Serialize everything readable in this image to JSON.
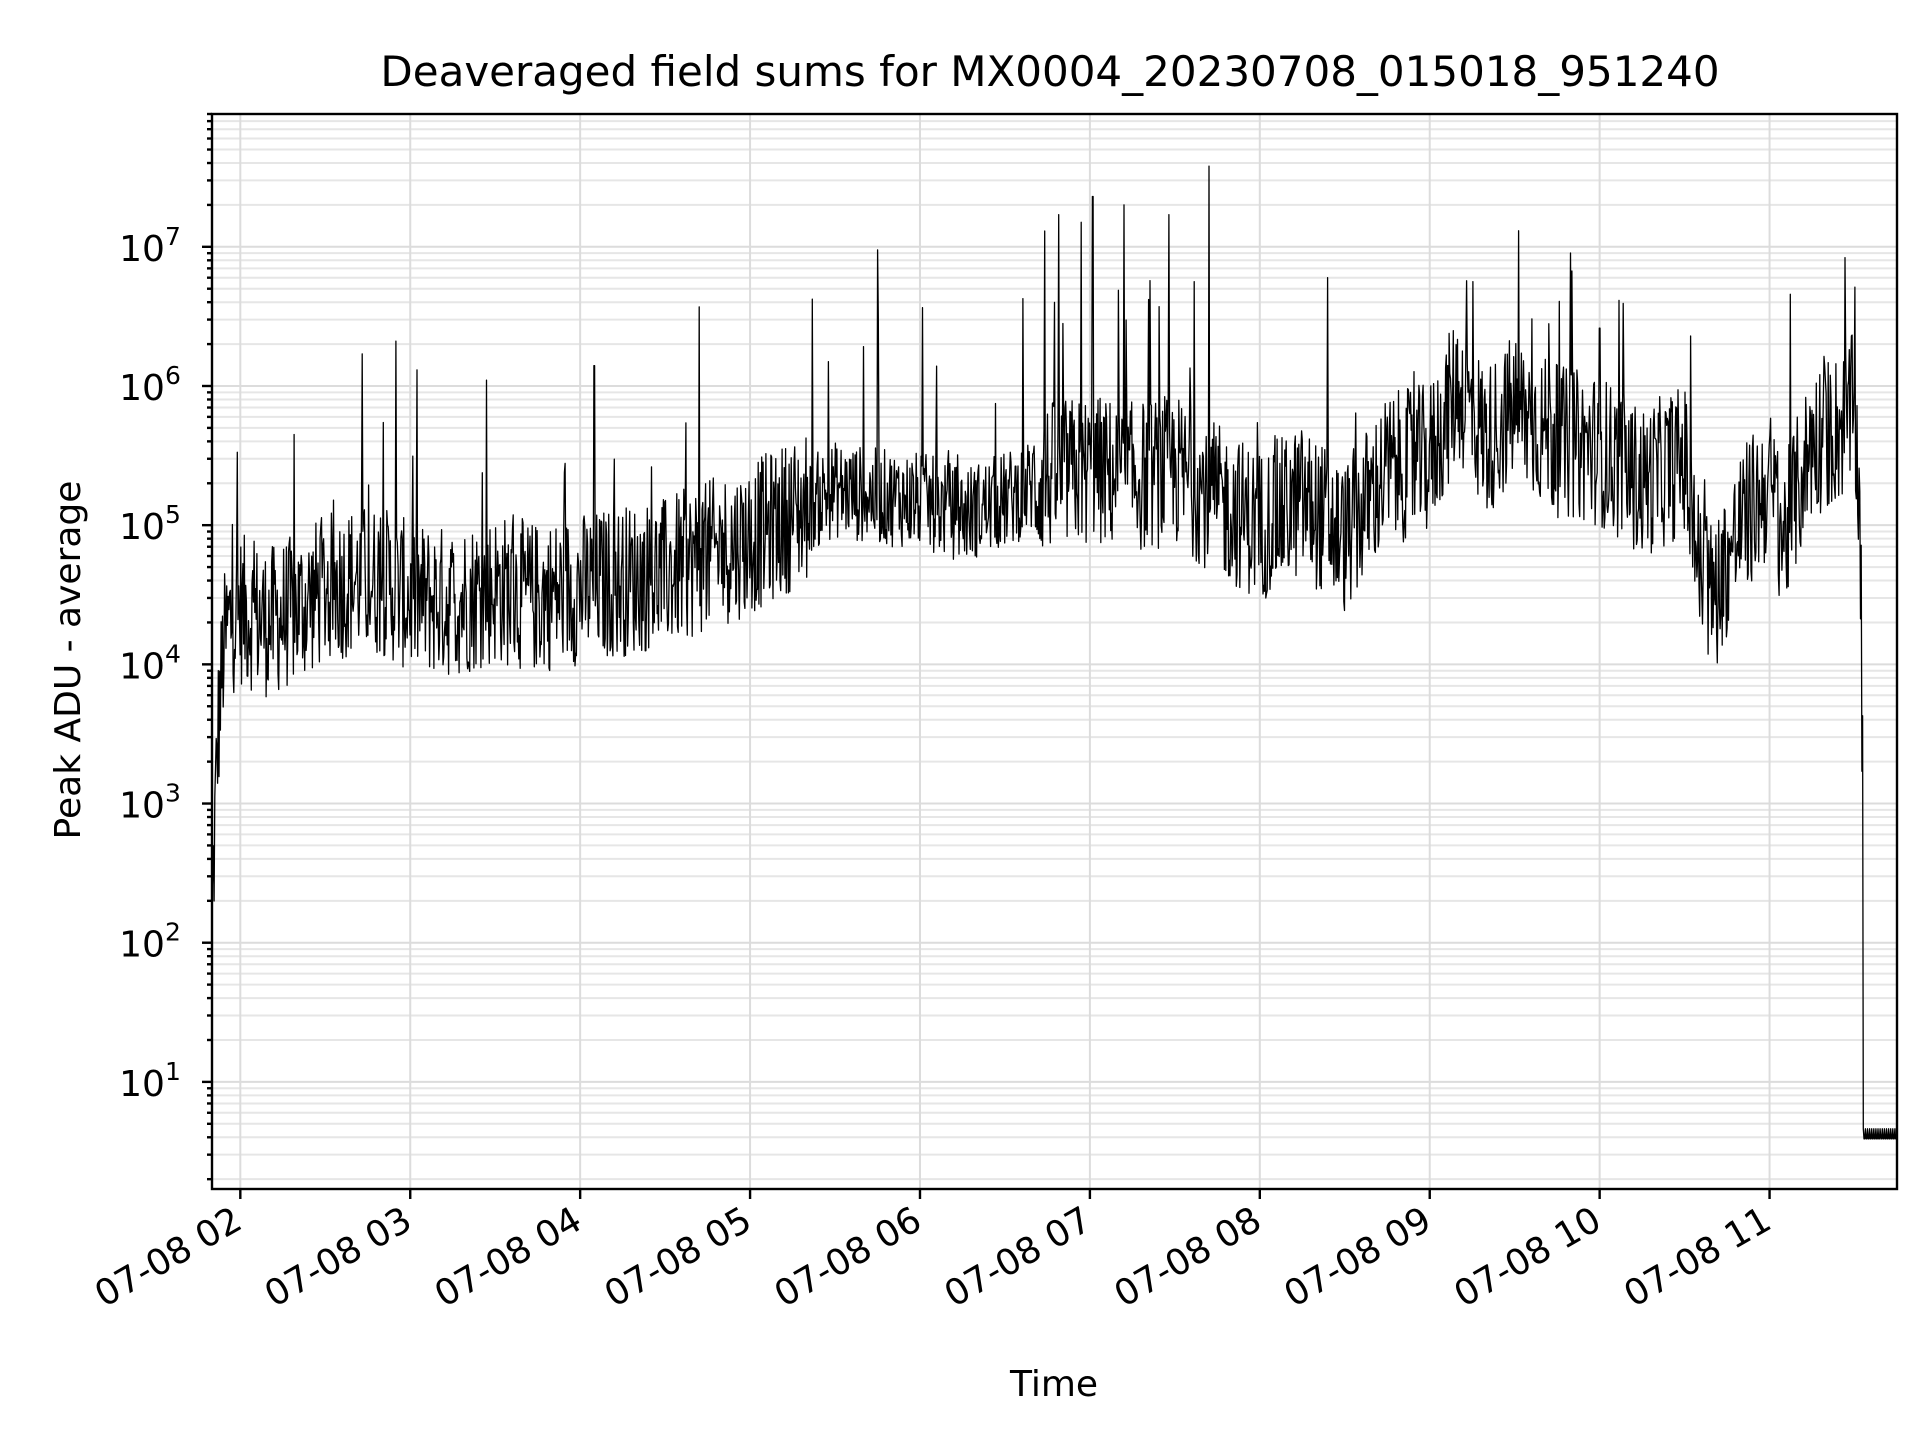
{
  "chart_data": {
    "type": "line",
    "title": "Deaveraged field sums for MX0004_20230708_015018_951240",
    "xlabel": "Time",
    "ylabel": "Peak ADU - average",
    "yscale": "log",
    "ylim": [
      1.7,
      90000000
    ],
    "xlim": [
      "2023-07-08 01:50",
      "2023-07-08 11:45"
    ],
    "grid": true,
    "x_tick_labels": [
      "07-08 02",
      "07-08 03",
      "07-08 04",
      "07-08 05",
      "07-08 06",
      "07-08 07",
      "07-08 08",
      "07-08 09",
      "07-08 10",
      "07-08 11"
    ],
    "y_ticks": [
      {
        "base": "10",
        "exp": "1",
        "value": 10
      },
      {
        "base": "10",
        "exp": "2",
        "value": 100
      },
      {
        "base": "10",
        "exp": "3",
        "value": 1000
      },
      {
        "base": "10",
        "exp": "4",
        "value": 10000
      },
      {
        "base": "10",
        "exp": "5",
        "value": 100000
      },
      {
        "base": "10",
        "exp": "6",
        "value": 1000000
      },
      {
        "base": "10",
        "exp": "7",
        "value": 10000000
      }
    ],
    "line_color": "#000000",
    "series": [
      {
        "points": [
          [
            "2023-07-08 01:50",
            150
          ],
          [
            "2023-07-08 01:52",
            3000
          ],
          [
            "2023-07-08 01:54",
            12000
          ],
          [
            "2023-07-08 01:56",
            20000
          ],
          [
            "2023-07-08 02:00",
            25000
          ],
          [
            "2023-07-08 02:05",
            22000
          ],
          [
            "2023-07-08 02:10",
            20000
          ],
          [
            "2023-07-08 02:20",
            25000
          ],
          [
            "2023-07-08 02:30",
            35000
          ],
          [
            "2023-07-08 02:40",
            40000
          ],
          [
            "2023-07-08 02:50",
            40000
          ],
          [
            "2023-07-08 03:00",
            30000
          ],
          [
            "2023-07-08 03:15",
            28000
          ],
          [
            "2023-07-08 03:30",
            35000
          ],
          [
            "2023-07-08 03:45",
            30000
          ],
          [
            "2023-07-08 04:00",
            35000
          ],
          [
            "2023-07-08 04:15",
            40000
          ],
          [
            "2023-07-08 04:30",
            45000
          ],
          [
            "2023-07-08 04:45",
            60000
          ],
          [
            "2023-07-08 05:00",
            80000
          ],
          [
            "2023-07-08 05:15",
            120000
          ],
          [
            "2023-07-08 05:30",
            180000
          ],
          [
            "2023-07-08 05:45",
            160000
          ],
          [
            "2023-07-08 06:00",
            150000
          ],
          [
            "2023-07-08 06:15",
            120000
          ],
          [
            "2023-07-08 06:30",
            150000
          ],
          [
            "2023-07-08 06:45",
            220000
          ],
          [
            "2023-07-08 07:00",
            250000
          ],
          [
            "2023-07-08 07:15",
            220000
          ],
          [
            "2023-07-08 07:30",
            250000
          ],
          [
            "2023-07-08 07:45",
            150000
          ],
          [
            "2023-07-08 08:00",
            100000
          ],
          [
            "2023-07-08 08:15",
            150000
          ],
          [
            "2023-07-08 08:30",
            80000
          ],
          [
            "2023-07-08 08:45",
            250000
          ],
          [
            "2023-07-08 09:00",
            300000
          ],
          [
            "2023-07-08 09:10",
            1000000
          ],
          [
            "2023-07-08 09:20",
            400000
          ],
          [
            "2023-07-08 09:30",
            700000
          ],
          [
            "2023-07-08 09:45",
            400000
          ],
          [
            "2023-07-08 10:00",
            350000
          ],
          [
            "2023-07-08 10:15",
            200000
          ],
          [
            "2023-07-08 10:30",
            300000
          ],
          [
            "2023-07-08 10:35",
            50000
          ],
          [
            "2023-07-08 10:40",
            30000
          ],
          [
            "2023-07-08 10:50",
            100000
          ],
          [
            "2023-07-08 11:00",
            200000
          ],
          [
            "2023-07-08 11:05",
            80000
          ],
          [
            "2023-07-08 11:15",
            400000
          ],
          [
            "2023-07-08 11:25",
            500000
          ],
          [
            "2023-07-08 11:30",
            700000
          ],
          [
            "2023-07-08 11:32",
            100000
          ],
          [
            "2023-07-08 11:34",
            4
          ],
          [
            "2023-07-08 11:45",
            4
          ]
        ],
        "peaks": [
          [
            "2023-07-08 02:43",
            1700000
          ],
          [
            "2023-07-08 02:55",
            2100000
          ],
          [
            "2023-07-08 03:27",
            1100000
          ],
          [
            "2023-07-08 04:05",
            1400000
          ],
          [
            "2023-07-08 04:42",
            3700000
          ],
          [
            "2023-07-08 05:22",
            4200000
          ],
          [
            "2023-07-08 05:45",
            9500000
          ],
          [
            "2023-07-08 06:44",
            13000000
          ],
          [
            "2023-07-08 06:49",
            17000000
          ],
          [
            "2023-07-08 06:57",
            15000000
          ],
          [
            "2023-07-08 07:01",
            23000000
          ],
          [
            "2023-07-08 07:12",
            20000000
          ],
          [
            "2023-07-08 07:28",
            17000000
          ],
          [
            "2023-07-08 07:42",
            38000000
          ],
          [
            "2023-07-08 08:24",
            6000000
          ],
          [
            "2023-07-08 09:13",
            5700000
          ],
          [
            "2023-07-08 09:42",
            2800000
          ],
          [
            "2023-07-08 10:00",
            2600000
          ]
        ]
      }
    ]
  }
}
